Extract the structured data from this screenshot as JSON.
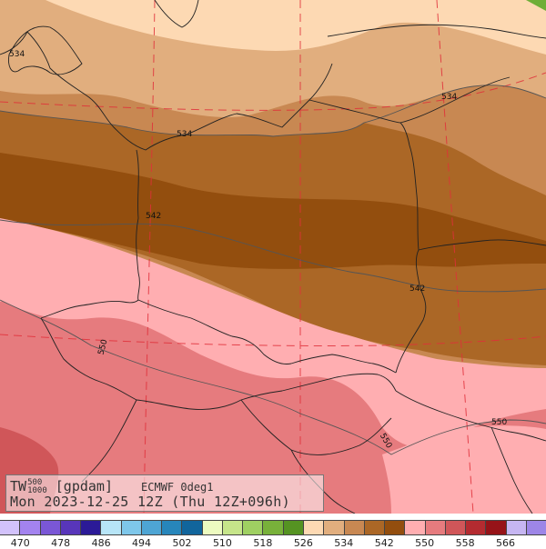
{
  "map": {
    "variable": "TW",
    "level_top": "500",
    "level_bottom": "1000",
    "unit": "[gpdam]",
    "model": "ECMWF 0deg1",
    "valid_time": "Mon 2023-12-25 12Z (Thu 12Z+096h)",
    "contour_labels": [
      "534",
      "534",
      "534",
      "542",
      "542",
      "550",
      "550",
      "550"
    ]
  },
  "legend": {
    "colors": [
      "#d2c2fb",
      "#a383ef",
      "#7a57d6",
      "#5836ba",
      "#2b1a97",
      "#b7e5f7",
      "#7ec7ea",
      "#4ea5d4",
      "#2786bb",
      "#11659c",
      "#edfbc0",
      "#c6e58a",
      "#9fd062",
      "#78b13a",
      "#559322",
      "#fdd9b3",
      "#e1ae7e",
      "#c88852",
      "#ab6726",
      "#934e0e",
      "#ffaeb1",
      "#e67b7e",
      "#d05659",
      "#b42b30",
      "#961318",
      "#c6b6f2",
      "#9d86e7"
    ],
    "ticks": [
      "470",
      "478",
      "486",
      "494",
      "502",
      "510",
      "518",
      "526",
      "534",
      "542",
      "550",
      "558",
      "566"
    ]
  }
}
